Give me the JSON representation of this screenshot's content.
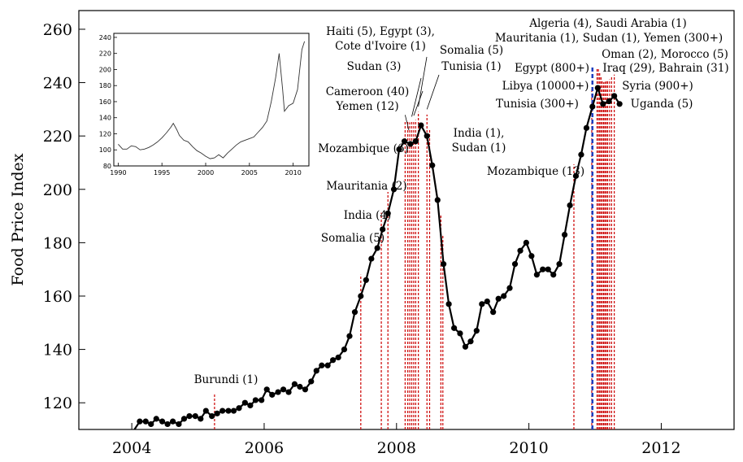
{
  "chart_data": {
    "type": "line",
    "title": "",
    "xlabel": "",
    "ylabel": "Food Price Index",
    "xlim": [
      2003.2,
      2013.1
    ],
    "ylim": [
      110,
      267
    ],
    "xticks": [
      2004,
      2006,
      2008,
      2010,
      2012
    ],
    "yticks": [
      120,
      140,
      160,
      180,
      200,
      220,
      240,
      260
    ],
    "grid": false,
    "legend": "none",
    "colors": {
      "series": "#000000",
      "riot_lines": "#cc0000",
      "libya_line": "#1f3fbf"
    },
    "series": [
      {
        "x": [
          2004.04,
          2004.12,
          2004.21,
          2004.29,
          2004.37,
          2004.46,
          2004.54,
          2004.62,
          2004.71,
          2004.79,
          2004.87,
          2004.96,
          2005.04,
          2005.12,
          2005.21,
          2005.29,
          2005.37,
          2005.46,
          2005.54,
          2005.62,
          2005.71,
          2005.79,
          2005.87,
          2005.96,
          2006.04,
          2006.12,
          2006.21,
          2006.29,
          2006.37,
          2006.46,
          2006.54,
          2006.62,
          2006.71,
          2006.79,
          2006.87,
          2006.96,
          2007.04,
          2007.12,
          2007.21,
          2007.29,
          2007.37,
          2007.46,
          2007.54,
          2007.62,
          2007.71,
          2007.79,
          2007.87,
          2007.96,
          2008.04,
          2008.12,
          2008.21,
          2008.29,
          2008.37,
          2008.46,
          2008.54,
          2008.62,
          2008.71,
          2008.79,
          2008.87,
          2008.96,
          2009.04,
          2009.12,
          2009.21,
          2009.29,
          2009.37,
          2009.46,
          2009.54,
          2009.62,
          2009.71,
          2009.79,
          2009.87,
          2009.96,
          2010.04,
          2010.12,
          2010.21,
          2010.29,
          2010.37,
          2010.46,
          2010.54,
          2010.62,
          2010.71,
          2010.79,
          2010.87,
          2010.96,
          2011.04,
          2011.12,
          2011.21,
          2011.29,
          2011.37
        ],
        "y": [
          110,
          113,
          113,
          112,
          114,
          113,
          112,
          113,
          112,
          114,
          115,
          115,
          114,
          117,
          115,
          116,
          117,
          117,
          117,
          118,
          120,
          119,
          121,
          121,
          125,
          123,
          124,
          125,
          124,
          127,
          126,
          125,
          128,
          132,
          134,
          134,
          136,
          137,
          140,
          145,
          154,
          160,
          166,
          174,
          178,
          185,
          191,
          200,
          215,
          218,
          217,
          218,
          224,
          220,
          209,
          196,
          172,
          157,
          148,
          146,
          141,
          143,
          147,
          157,
          158,
          154,
          159,
          160,
          163,
          172,
          177,
          180,
          175,
          168,
          170,
          170,
          168,
          172,
          183,
          194,
          205,
          213,
          223,
          231,
          238,
          232,
          233,
          235,
          232
        ]
      }
    ],
    "riot_events_x": [
      2005.25,
      2007.46,
      2007.77,
      2007.87,
      2008.13,
      2008.17,
      2008.2,
      2008.23,
      2008.26,
      2008.29,
      2008.33,
      2008.46,
      2008.5,
      2008.67,
      2008.7,
      2010.68,
      2010.95,
      2011.03,
      2011.05,
      2011.07,
      2011.09,
      2011.11,
      2011.13,
      2011.15,
      2011.17,
      2011.19,
      2011.22,
      2011.25,
      2011.29
    ],
    "libya_event_x": 2010.96,
    "annotations": [
      "Burundi (1)",
      "Somalia (5)",
      "India (4)",
      "Mauritania (2)",
      "Mozambique (6)",
      "Cameroon (40)",
      "Yemen (12)",
      "Sudan (3)",
      "Haiti (5), Egypt (3),",
      "Cote d'Ivoire (1)",
      "Somalia (5)",
      "Tunisia (1)",
      "India (1),",
      "Sudan (1)",
      "Mozambique (13)",
      "Algeria (4), Saudi Arabia (1)",
      "Mauritania (1), Sudan (1), Yemen (300+)",
      "Oman (2), Morocco (5)",
      "Egypt (800+)",
      "Iraq (29), Bahrain (31)",
      "Libya (10000+)",
      "Syria (900+)",
      "Tunisia (300+)",
      "Uganda (5)"
    ],
    "inset": {
      "type": "line",
      "xticks": [
        1990,
        1995,
        2000,
        2005,
        2010
      ],
      "yticks": [
        80,
        100,
        120,
        140,
        160,
        180,
        200,
        220,
        240
      ],
      "xlim": [
        1989.5,
        2011.8
      ],
      "ylim": [
        80,
        245
      ],
      "x": [
        1990,
        1990.5,
        1991,
        1991.5,
        1992,
        1992.5,
        1993,
        1993.5,
        1994,
        1994.5,
        1995,
        1995.5,
        1996,
        1996.3,
        1996.7,
        1997,
        1997.5,
        1998,
        1998.5,
        1999,
        1999.5,
        2000,
        2000.5,
        2001,
        2001.5,
        2002,
        2002.5,
        2003,
        2003.5,
        2004,
        2004.5,
        2005,
        2005.5,
        2006,
        2006.5,
        2007,
        2007.5,
        2008,
        2008.4,
        2008.8,
        2009,
        2009.5,
        2010,
        2010.5,
        2011,
        2011.3
      ],
      "y": [
        107,
        101,
        101,
        105,
        104,
        100,
        101,
        103,
        106,
        110,
        115,
        121,
        128,
        133,
        125,
        118,
        112,
        110,
        104,
        99,
        96,
        92,
        89,
        90,
        94,
        90,
        96,
        101,
        106,
        110,
        112,
        114,
        116,
        122,
        128,
        136,
        160,
        190,
        220,
        175,
        148,
        155,
        158,
        175,
        225,
        235
      ]
    }
  }
}
